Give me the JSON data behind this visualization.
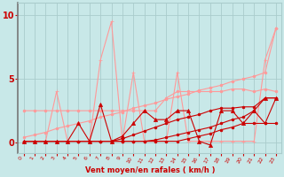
{
  "x": [
    0,
    1,
    2,
    3,
    4,
    5,
    6,
    7,
    8,
    9,
    10,
    11,
    12,
    13,
    14,
    15,
    16,
    17,
    18,
    19,
    20,
    21,
    22,
    23
  ],
  "series": [
    {
      "name": "light_pink_jagged",
      "color": "#FF9999",
      "marker": "+",
      "markersize": 3.5,
      "linewidth": 0.8,
      "y": [
        0.1,
        0.1,
        0.1,
        4.0,
        0.1,
        0.1,
        0.1,
        6.5,
        9.5,
        0.1,
        5.5,
        0.1,
        0.1,
        0.1,
        5.5,
        0.1,
        0.1,
        0.1,
        0.1,
        0.1,
        0.1,
        0.1,
        6.5,
        9.0
      ]
    },
    {
      "name": "light_pink_rising",
      "color": "#FF9999",
      "marker": "o",
      "markersize": 2.0,
      "linewidth": 0.8,
      "y": [
        0.4,
        0.6,
        0.8,
        1.1,
        1.3,
        1.5,
        1.7,
        2.0,
        2.2,
        2.4,
        2.7,
        2.9,
        3.1,
        3.4,
        3.6,
        3.8,
        4.1,
        4.3,
        4.5,
        4.8,
        5.0,
        5.2,
        5.5,
        9.0
      ]
    },
    {
      "name": "pink_flat_high",
      "color": "#FF9999",
      "marker": "o",
      "markersize": 2.0,
      "linewidth": 0.8,
      "y": [
        2.5,
        2.5,
        2.5,
        2.5,
        2.5,
        2.5,
        2.5,
        2.5,
        2.5,
        2.5,
        2.5,
        2.5,
        2.5,
        3.5,
        4.0,
        4.0,
        4.0,
        4.0,
        4.0,
        4.2,
        4.2,
        4.0,
        4.2,
        4.0
      ]
    },
    {
      "name": "dark_red_jagged",
      "color": "#CC0000",
      "marker": "^",
      "markersize": 3.0,
      "linewidth": 0.8,
      "y": [
        0.1,
        0.1,
        0.1,
        0.1,
        0.1,
        1.5,
        0.1,
        3.0,
        0.1,
        0.5,
        1.5,
        2.5,
        1.8,
        1.8,
        2.5,
        2.5,
        0.1,
        -0.2,
        2.5,
        2.5,
        1.5,
        2.5,
        3.5,
        3.5
      ]
    },
    {
      "name": "dark_red_rising1",
      "color": "#CC0000",
      "marker": "o",
      "markersize": 2.0,
      "linewidth": 0.8,
      "y": [
        0.1,
        0.1,
        0.1,
        0.1,
        0.1,
        0.1,
        0.1,
        0.1,
        0.1,
        0.3,
        0.6,
        0.9,
        1.2,
        1.5,
        1.8,
        2.0,
        2.2,
        2.5,
        2.7,
        2.7,
        2.8,
        2.8,
        3.5,
        3.5
      ]
    },
    {
      "name": "dark_red_rising2",
      "color": "#CC0000",
      "marker": "o",
      "markersize": 2.0,
      "linewidth": 0.8,
      "y": [
        0.1,
        0.1,
        0.1,
        0.1,
        0.1,
        0.1,
        0.1,
        0.1,
        0.1,
        0.1,
        0.1,
        0.1,
        0.2,
        0.4,
        0.6,
        0.8,
        1.0,
        1.2,
        1.5,
        1.8,
        2.0,
        2.5,
        1.5,
        3.5
      ]
    },
    {
      "name": "dark_red_flat_low",
      "color": "#CC0000",
      "marker": "o",
      "markersize": 2.0,
      "linewidth": 0.8,
      "y": [
        0.1,
        0.1,
        0.1,
        0.1,
        0.1,
        0.1,
        0.1,
        0.1,
        0.1,
        0.1,
        0.1,
        0.1,
        0.1,
        0.1,
        0.1,
        0.3,
        0.5,
        0.7,
        1.0,
        1.2,
        1.5,
        1.5,
        1.5,
        1.5
      ]
    }
  ],
  "xlabel": "Vent moyen/en rafales ( km/h )",
  "xlim": [
    -0.5,
    23.5
  ],
  "ylim": [
    -0.8,
    11.0
  ],
  "yticks": [
    0,
    5,
    10
  ],
  "xticks": [
    0,
    1,
    2,
    3,
    4,
    5,
    6,
    7,
    8,
    9,
    10,
    11,
    12,
    13,
    14,
    15,
    16,
    17,
    18,
    19,
    20,
    21,
    22,
    23
  ],
  "bg_color": "#C8E8E8",
  "grid_color": "#AACCCC",
  "tick_color": "#CC0000",
  "label_color": "#CC0000",
  "figsize": [
    3.2,
    2.0
  ],
  "dpi": 100
}
